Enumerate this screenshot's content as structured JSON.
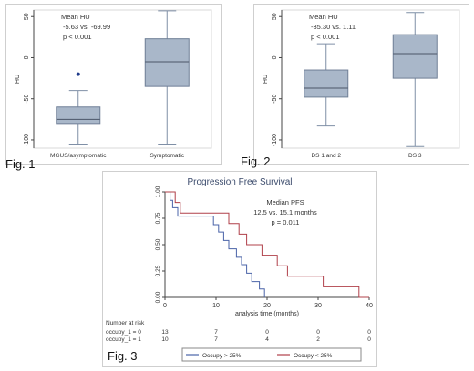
{
  "chart_data": [
    {
      "type": "box",
      "figure_label": "Fig. 1",
      "ylabel": "HU",
      "ylim": [
        -110,
        58
      ],
      "y_ticks": [
        -100,
        -50,
        0,
        50
      ],
      "y_tick_labels": [
        "-100",
        "-50",
        "0",
        "50"
      ],
      "annotation": [
        "Mean HU",
        "-5.63 vs. -69.99",
        "p < 0.001"
      ],
      "color": "#a9b7c9",
      "categories": [
        "MGUS/asymptomatic",
        "Symptomatic"
      ],
      "boxes": [
        {
          "min": -105,
          "q1": -80,
          "median": -75,
          "q3": -60,
          "max": -40,
          "outliers": [
            -20
          ]
        },
        {
          "min": -105,
          "q1": -35,
          "median": -5,
          "q3": 23,
          "max": 57,
          "outliers": []
        }
      ]
    },
    {
      "type": "box",
      "figure_label": "Fig. 2",
      "ylabel": "HU",
      "ylim": [
        -110,
        58
      ],
      "y_ticks": [
        -100,
        -50,
        0,
        50
      ],
      "y_tick_labels": [
        "-100",
        "-50",
        "0",
        "50"
      ],
      "annotation": [
        "Mean HU",
        "-35.30 vs. 1.11",
        "p < 0.001"
      ],
      "color": "#a9b7c9",
      "categories": [
        "DS 1 and 2",
        "DS 3"
      ],
      "boxes": [
        {
          "min": -83,
          "q1": -48,
          "median": -37,
          "q3": -15,
          "max": 17,
          "outliers": []
        },
        {
          "min": -108,
          "q1": -25,
          "median": 5,
          "q3": 28,
          "max": 55,
          "outliers": []
        }
      ]
    },
    {
      "type": "line",
      "subtype": "kaplan-meier",
      "figure_label": "Fig. 3",
      "title": "Progression Free Survival",
      "xlabel": "analysis time (months)",
      "xlim": [
        0,
        40
      ],
      "ylim": [
        0,
        1
      ],
      "x_ticks": [
        0,
        10,
        20,
        30,
        40
      ],
      "y_ticks": [
        0,
        0.25,
        0.5,
        0.75,
        1
      ],
      "y_tick_labels": [
        "0.00",
        "0.25",
        "0.50",
        "0.75",
        "1.00"
      ],
      "annotation": [
        "Median PFS",
        "12.5 vs. 15.1 months",
        "p = 0.011"
      ],
      "series": [
        {
          "name": "Occupy > 25%",
          "color": "#4a63a8",
          "steps": [
            [
              0,
              1.0
            ],
            [
              1.0,
              0.92
            ],
            [
              1.5,
              0.85
            ],
            [
              2.5,
              0.77
            ],
            [
              9.5,
              0.69
            ],
            [
              10.5,
              0.62
            ],
            [
              11.5,
              0.54
            ],
            [
              12.5,
              0.46
            ],
            [
              14,
              0.38
            ],
            [
              15,
              0.31
            ],
            [
              16,
              0.23
            ],
            [
              17,
              0.15
            ],
            [
              18.5,
              0.08
            ],
            [
              19.5,
              0.0
            ]
          ]
        },
        {
          "name": "Occupy < 25%",
          "color": "#b0404a",
          "steps": [
            [
              0,
              1.0
            ],
            [
              2.0,
              0.9
            ],
            [
              3.0,
              0.8
            ],
            [
              12.5,
              0.7
            ],
            [
              14.5,
              0.6
            ],
            [
              16,
              0.5
            ],
            [
              19,
              0.4
            ],
            [
              22,
              0.3
            ],
            [
              24,
              0.2
            ],
            [
              31,
              0.1
            ],
            [
              38,
              0.0
            ]
          ]
        }
      ],
      "risk_table": {
        "heading": "Number at risk",
        "rows": [
          {
            "label": "occupy_1 = 0",
            "values": [
              "13",
              "7",
              "0",
              "0",
              "0"
            ]
          },
          {
            "label": "occupy_1 = 1",
            "values": [
              "10",
              "7",
              "4",
              "2",
              "0"
            ]
          }
        ]
      }
    }
  ]
}
